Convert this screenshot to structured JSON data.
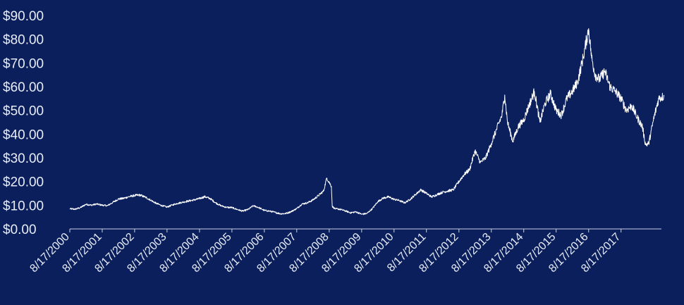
{
  "colors": {
    "background": "#0a1f5c",
    "line": "#ffffff",
    "axis": "#c9d1e6",
    "text": "#e8ecf6"
  },
  "chart_data": {
    "type": "line",
    "title": "",
    "xlabel": "",
    "ylabel": "",
    "ylim": [
      0,
      90
    ],
    "xlim": [
      "2000-08-17",
      "2018-11-15"
    ],
    "grid": false,
    "legend": "none",
    "y_ticks": [
      0,
      10,
      20,
      30,
      40,
      50,
      60,
      70,
      80,
      90
    ],
    "y_tick_labels": [
      "$0.00",
      "$10.00",
      "$20.00",
      "$30.00",
      "$40.00",
      "$50.00",
      "$60.00",
      "$70.00",
      "$80.00",
      "$90.00"
    ],
    "x_tick_labels": [
      "8/17/2000",
      "8/17/2001",
      "8/17/2002",
      "8/17/2003",
      "8/17/2004",
      "8/17/2005",
      "8/17/2006",
      "8/17/2007",
      "8/17/2008",
      "8/17/2009",
      "8/17/2010",
      "8/17/2011",
      "8/17/2012",
      "8/17/2013",
      "8/17/2014",
      "8/17/2015",
      "8/17/2016",
      "8/17/2017"
    ],
    "x_ticks": [
      "2000-08-17",
      "2001-08-17",
      "2002-08-17",
      "2003-08-17",
      "2004-08-17",
      "2005-08-17",
      "2006-08-17",
      "2007-08-17",
      "2008-08-17",
      "2009-08-17",
      "2010-08-17",
      "2011-08-17",
      "2012-08-17",
      "2013-08-17",
      "2014-08-17",
      "2015-08-17",
      "2016-08-17",
      "2017-08-17"
    ],
    "series": [
      {
        "values": [
          [
            "2000-08-17",
            8.5
          ],
          [
            "2000-10-15",
            8.3
          ],
          [
            "2000-12-15",
            9.0
          ],
          [
            "2001-02-15",
            10.4
          ],
          [
            "2001-04-15",
            10.0
          ],
          [
            "2001-06-15",
            10.5
          ],
          [
            "2001-08-17",
            10.0
          ],
          [
            "2001-10-15",
            9.8
          ],
          [
            "2001-12-15",
            11.2
          ],
          [
            "2002-02-15",
            12.6
          ],
          [
            "2002-04-15",
            12.9
          ],
          [
            "2002-06-15",
            13.6
          ],
          [
            "2002-08-17",
            14.1
          ],
          [
            "2002-10-15",
            14.3
          ],
          [
            "2002-12-15",
            13.4
          ],
          [
            "2003-02-15",
            12.1
          ],
          [
            "2003-04-15",
            10.8
          ],
          [
            "2003-06-15",
            9.9
          ],
          [
            "2003-08-17",
            9.2
          ],
          [
            "2003-10-15",
            10.1
          ],
          [
            "2003-12-15",
            10.8
          ],
          [
            "2004-02-15",
            11.3
          ],
          [
            "2004-04-15",
            11.8
          ],
          [
            "2004-06-15",
            12.2
          ],
          [
            "2004-08-17",
            12.8
          ],
          [
            "2004-10-15",
            13.6
          ],
          [
            "2004-12-15",
            12.8
          ],
          [
            "2005-02-15",
            11.0
          ],
          [
            "2005-04-15",
            9.8
          ],
          [
            "2005-06-15",
            9.1
          ],
          [
            "2005-08-17",
            9.0
          ],
          [
            "2005-10-15",
            8.2
          ],
          [
            "2005-12-15",
            7.5
          ],
          [
            "2006-02-15",
            8.2
          ],
          [
            "2006-04-15",
            9.8
          ],
          [
            "2006-06-15",
            9.0
          ],
          [
            "2006-08-17",
            7.8
          ],
          [
            "2006-10-15",
            7.5
          ],
          [
            "2006-12-15",
            7.0
          ],
          [
            "2007-02-15",
            6.4
          ],
          [
            "2007-04-15",
            6.5
          ],
          [
            "2007-06-15",
            7.3
          ],
          [
            "2007-08-17",
            8.6
          ],
          [
            "2007-10-15",
            10.5
          ],
          [
            "2007-12-15",
            11.0
          ],
          [
            "2008-02-15",
            12.2
          ],
          [
            "2008-04-15",
            14.0
          ],
          [
            "2008-06-15",
            16.0
          ],
          [
            "2008-07-20",
            21.5
          ],
          [
            "2008-09-10",
            18.0
          ],
          [
            "2008-09-20",
            9.5
          ],
          [
            "2008-10-20",
            8.5
          ],
          [
            "2008-12-15",
            8.3
          ],
          [
            "2009-02-15",
            7.6
          ],
          [
            "2009-04-15",
            6.8
          ],
          [
            "2009-06-15",
            7.2
          ],
          [
            "2009-08-17",
            6.2
          ],
          [
            "2009-10-15",
            6.5
          ],
          [
            "2009-12-15",
            8.5
          ],
          [
            "2010-02-15",
            11.5
          ],
          [
            "2010-04-15",
            13.0
          ],
          [
            "2010-06-15",
            13.5
          ],
          [
            "2010-08-17",
            12.5
          ],
          [
            "2010-10-15",
            12.0
          ],
          [
            "2010-12-15",
            11.0
          ],
          [
            "2011-02-15",
            12.5
          ],
          [
            "2011-04-15",
            14.5
          ],
          [
            "2011-06-15",
            16.5
          ],
          [
            "2011-08-17",
            15.0
          ],
          [
            "2011-10-15",
            13.5
          ],
          [
            "2011-12-15",
            14.5
          ],
          [
            "2012-02-15",
            15.5
          ],
          [
            "2012-04-15",
            16.0
          ],
          [
            "2012-06-15",
            16.5
          ],
          [
            "2012-08-17",
            20.0
          ],
          [
            "2012-10-15",
            23.0
          ],
          [
            "2012-12-15",
            25.0
          ],
          [
            "2013-02-15",
            33.0
          ],
          [
            "2013-04-15",
            28.0
          ],
          [
            "2013-06-15",
            30.0
          ],
          [
            "2013-08-17",
            36.0
          ],
          [
            "2013-10-15",
            42.0
          ],
          [
            "2013-12-15",
            48.0
          ],
          [
            "2014-01-15",
            56.5
          ],
          [
            "2014-02-15",
            45.0
          ],
          [
            "2014-04-15",
            37.0
          ],
          [
            "2014-06-15",
            43.0
          ],
          [
            "2014-08-17",
            46.0
          ],
          [
            "2014-10-15",
            52.0
          ],
          [
            "2014-12-15",
            58.0
          ],
          [
            "2015-02-15",
            45.0
          ],
          [
            "2015-04-15",
            53.0
          ],
          [
            "2015-06-15",
            57.0
          ],
          [
            "2015-08-17",
            50.0
          ],
          [
            "2015-10-15",
            48.0
          ],
          [
            "2015-12-15",
            55.0
          ],
          [
            "2016-02-15",
            58.0
          ],
          [
            "2016-04-15",
            62.0
          ],
          [
            "2016-06-15",
            72.0
          ],
          [
            "2016-08-17",
            84.5
          ],
          [
            "2016-09-20",
            72.0
          ],
          [
            "2016-10-30",
            65.0
          ],
          [
            "2016-12-15",
            63.0
          ],
          [
            "2017-02-15",
            66.5
          ],
          [
            "2017-04-15",
            60.0
          ],
          [
            "2017-06-15",
            58.0
          ],
          [
            "2017-08-17",
            55.0
          ],
          [
            "2017-10-15",
            50.0
          ],
          [
            "2017-12-15",
            52.0
          ],
          [
            "2018-02-15",
            47.0
          ],
          [
            "2018-04-15",
            43.0
          ],
          [
            "2018-05-20",
            35.5
          ],
          [
            "2018-06-25",
            36.0
          ],
          [
            "2018-08-17",
            46.0
          ],
          [
            "2018-10-15",
            55.0
          ],
          [
            "2018-12-15",
            56.0
          ]
        ]
      }
    ]
  }
}
